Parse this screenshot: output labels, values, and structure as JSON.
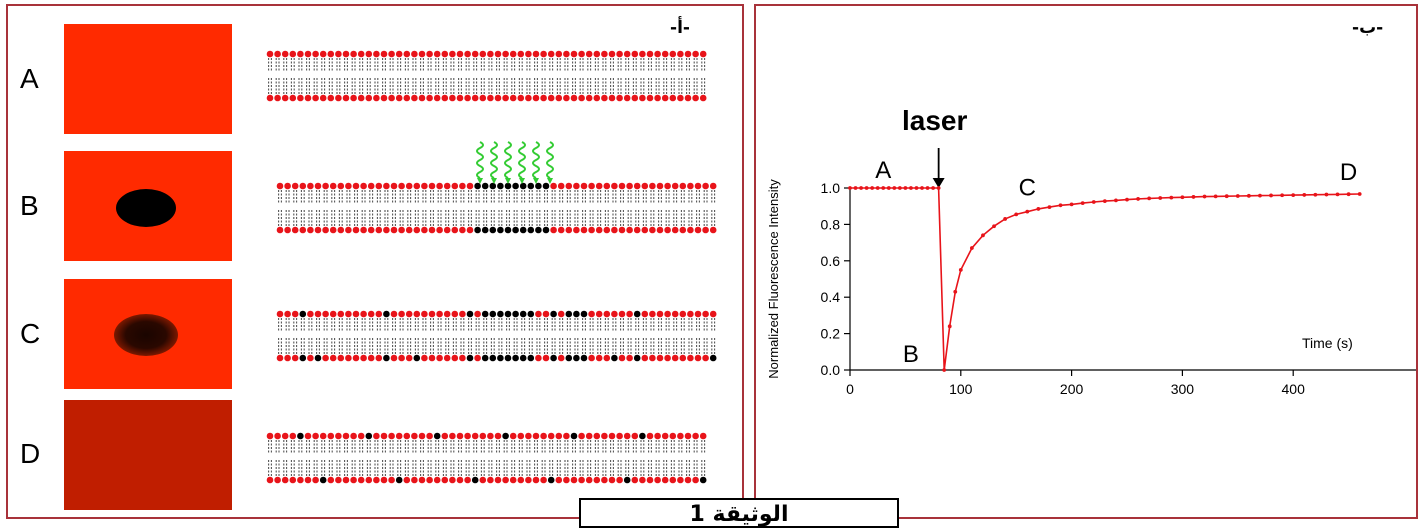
{
  "panel_a": {
    "label": "-أ-",
    "rows": [
      {
        "letter": "A",
        "swatch_color": "#ff2a00",
        "spot": "none"
      },
      {
        "letter": "B",
        "swatch_color": "#ff2a00",
        "spot": "dark"
      },
      {
        "letter": "C",
        "swatch_color": "#ff2a00",
        "spot": "blurred"
      },
      {
        "letter": "D",
        "swatch_color": "#c01e00",
        "spot": "none"
      }
    ],
    "colors": {
      "lipid_head": "#e8141a",
      "bleached_head": "#000000",
      "laser": "#33cc33"
    }
  },
  "panel_b": {
    "label": "-ب-",
    "laser_label": "laser",
    "point_labels": [
      "A",
      "B",
      "C",
      "D"
    ]
  },
  "caption": "الوثيقة 1",
  "chart_data": {
    "type": "line",
    "title": "",
    "xlabel": "Time (s)",
    "ylabel": "Normalized Fluorescence Intensity",
    "xlim": [
      0,
      465
    ],
    "ylim": [
      0,
      1.0
    ],
    "xticks": [
      0,
      100,
      200,
      300,
      400
    ],
    "yticks": [
      "0.0",
      "0.2",
      "0.4",
      "0.6",
      "0.8",
      "1.0"
    ],
    "line_color": "#e8141a",
    "laser_time": 80,
    "series": [
      {
        "x": [
          0,
          5,
          10,
          15,
          20,
          25,
          30,
          35,
          40,
          45,
          50,
          55,
          60,
          65,
          70,
          75,
          80,
          85,
          90,
          95,
          100,
          110,
          120,
          130,
          140,
          150,
          160,
          170,
          180,
          190,
          200,
          210,
          220,
          230,
          240,
          250,
          260,
          270,
          280,
          290,
          300,
          310,
          320,
          330,
          340,
          350,
          360,
          370,
          380,
          390,
          400,
          410,
          420,
          430,
          440,
          450,
          460
        ],
        "y": [
          1.0,
          1.0,
          1.0,
          1.0,
          1.0,
          1.0,
          1.0,
          1.0,
          1.0,
          1.0,
          1.0,
          1.0,
          1.0,
          1.0,
          1.0,
          1.0,
          1.0,
          0.0,
          0.24,
          0.43,
          0.55,
          0.67,
          0.74,
          0.79,
          0.83,
          0.855,
          0.87,
          0.885,
          0.895,
          0.905,
          0.91,
          0.917,
          0.923,
          0.928,
          0.932,
          0.936,
          0.94,
          0.943,
          0.945,
          0.947,
          0.949,
          0.951,
          0.953,
          0.954,
          0.955,
          0.956,
          0.957,
          0.958,
          0.959,
          0.96,
          0.961,
          0.962,
          0.963,
          0.964,
          0.965,
          0.966,
          0.967
        ]
      }
    ]
  }
}
